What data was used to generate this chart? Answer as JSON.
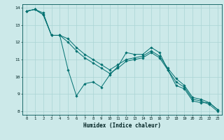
{
  "title": "",
  "xlabel": "Humidex (Indice chaleur)",
  "ylabel": "",
  "background_color": "#cce9e9",
  "grid_color": "#aad4d4",
  "line_color": "#007070",
  "xlim": [
    -0.5,
    23.5
  ],
  "ylim": [
    7.8,
    14.2
  ],
  "yticks": [
    8,
    9,
    10,
    11,
    12,
    13,
    14
  ],
  "xticks": [
    0,
    1,
    2,
    3,
    4,
    5,
    6,
    7,
    8,
    9,
    10,
    11,
    12,
    13,
    14,
    15,
    16,
    17,
    18,
    19,
    20,
    21,
    22,
    23
  ],
  "series": [
    [
      13.8,
      13.9,
      13.7,
      12.4,
      12.4,
      10.4,
      8.9,
      9.6,
      9.7,
      9.4,
      10.1,
      10.6,
      11.4,
      11.3,
      11.3,
      11.7,
      11.4,
      10.4,
      9.5,
      9.3,
      8.6,
      8.5,
      8.5,
      8.1
    ],
    [
      13.8,
      13.9,
      13.6,
      12.4,
      12.4,
      12.2,
      11.7,
      11.3,
      11.0,
      10.7,
      10.4,
      10.7,
      11.0,
      11.1,
      11.2,
      11.5,
      11.2,
      10.5,
      9.9,
      9.5,
      8.8,
      8.7,
      8.5,
      8.1
    ],
    [
      13.8,
      13.9,
      13.6,
      12.4,
      12.4,
      12.0,
      11.5,
      11.1,
      10.8,
      10.5,
      10.2,
      10.5,
      10.9,
      11.0,
      11.1,
      11.4,
      11.1,
      10.4,
      9.7,
      9.4,
      8.7,
      8.6,
      8.4,
      8.0
    ]
  ]
}
